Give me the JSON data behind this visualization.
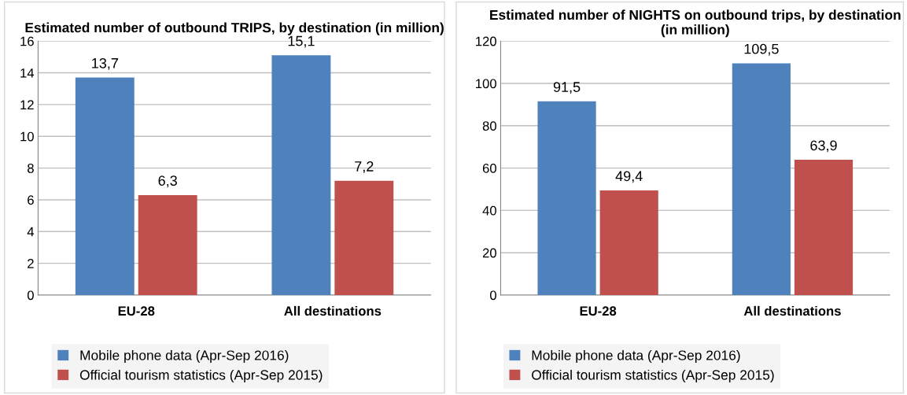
{
  "chart_data": [
    {
      "type": "bar",
      "title": "Estimated number of outbound TRIPS, by destination (in million)",
      "categories": [
        "EU-28",
        "All destinations"
      ],
      "series": [
        {
          "name": "Mobile phone data (Apr-Sep 2016)",
          "color": "#4f81bd",
          "values": [
            13.7,
            15.1
          ],
          "value_labels": [
            "13,7",
            "15,1"
          ]
        },
        {
          "name": "Official tourism statistics (Apr-Sep 2015)",
          "color": "#c0504d",
          "values": [
            6.3,
            7.2
          ],
          "value_labels": [
            "6,3",
            "7,2"
          ]
        }
      ],
      "ylim": [
        0,
        16
      ],
      "yticks": [
        0,
        2,
        4,
        6,
        8,
        10,
        12,
        14,
        16
      ],
      "grid": "y",
      "legend": "bottom"
    },
    {
      "type": "bar",
      "title": "Estimated number of NIGHTS on outbound trips, by destination (in million)",
      "categories": [
        "EU-28",
        "All destinations"
      ],
      "series": [
        {
          "name": "Mobile phone data (Apr-Sep 2016)",
          "color": "#4f81bd",
          "values": [
            91.5,
            109.5
          ],
          "value_labels": [
            "91,5",
            "109,5"
          ]
        },
        {
          "name": "Official tourism statistics (Apr-Sep 2015)",
          "color": "#c0504d",
          "values": [
            49.4,
            63.9
          ],
          "value_labels": [
            "49,4",
            "63,9"
          ]
        }
      ],
      "ylim": [
        0,
        120
      ],
      "yticks": [
        0,
        20,
        40,
        60,
        80,
        100,
        120
      ],
      "grid": "y",
      "legend": "bottom"
    }
  ]
}
